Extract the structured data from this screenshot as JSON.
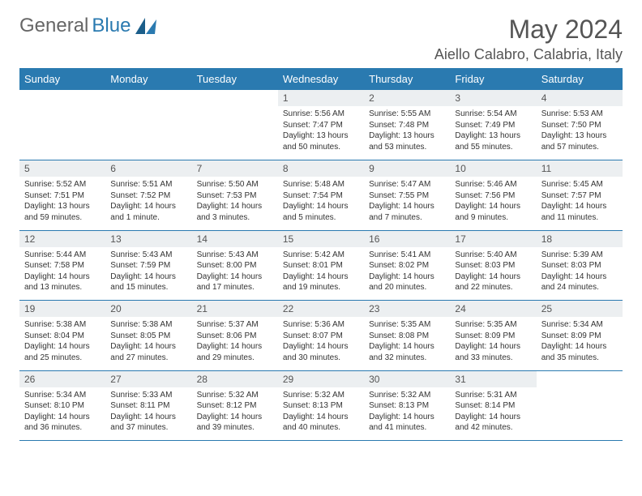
{
  "logo": {
    "general": "General",
    "blue": "Blue"
  },
  "title": "May 2024",
  "location": "Aiello Calabro, Calabria, Italy",
  "colors": {
    "header_bg": "#2a7ab0",
    "header_text": "#ffffff",
    "daynum_bg": "#eceff1",
    "text": "#333333",
    "page_bg": "#ffffff",
    "rule": "#2a7ab0"
  },
  "weekdays": [
    "Sunday",
    "Monday",
    "Tuesday",
    "Wednesday",
    "Thursday",
    "Friday",
    "Saturday"
  ],
  "weeks": [
    [
      {
        "day": "",
        "sunrise": "",
        "sunset": "",
        "daylight1": "",
        "daylight2": ""
      },
      {
        "day": "",
        "sunrise": "",
        "sunset": "",
        "daylight1": "",
        "daylight2": ""
      },
      {
        "day": "",
        "sunrise": "",
        "sunset": "",
        "daylight1": "",
        "daylight2": ""
      },
      {
        "day": "1",
        "sunrise": "Sunrise: 5:56 AM",
        "sunset": "Sunset: 7:47 PM",
        "daylight1": "Daylight: 13 hours",
        "daylight2": "and 50 minutes."
      },
      {
        "day": "2",
        "sunrise": "Sunrise: 5:55 AM",
        "sunset": "Sunset: 7:48 PM",
        "daylight1": "Daylight: 13 hours",
        "daylight2": "and 53 minutes."
      },
      {
        "day": "3",
        "sunrise": "Sunrise: 5:54 AM",
        "sunset": "Sunset: 7:49 PM",
        "daylight1": "Daylight: 13 hours",
        "daylight2": "and 55 minutes."
      },
      {
        "day": "4",
        "sunrise": "Sunrise: 5:53 AM",
        "sunset": "Sunset: 7:50 PM",
        "daylight1": "Daylight: 13 hours",
        "daylight2": "and 57 minutes."
      }
    ],
    [
      {
        "day": "5",
        "sunrise": "Sunrise: 5:52 AM",
        "sunset": "Sunset: 7:51 PM",
        "daylight1": "Daylight: 13 hours",
        "daylight2": "and 59 minutes."
      },
      {
        "day": "6",
        "sunrise": "Sunrise: 5:51 AM",
        "sunset": "Sunset: 7:52 PM",
        "daylight1": "Daylight: 14 hours",
        "daylight2": "and 1 minute."
      },
      {
        "day": "7",
        "sunrise": "Sunrise: 5:50 AM",
        "sunset": "Sunset: 7:53 PM",
        "daylight1": "Daylight: 14 hours",
        "daylight2": "and 3 minutes."
      },
      {
        "day": "8",
        "sunrise": "Sunrise: 5:48 AM",
        "sunset": "Sunset: 7:54 PM",
        "daylight1": "Daylight: 14 hours",
        "daylight2": "and 5 minutes."
      },
      {
        "day": "9",
        "sunrise": "Sunrise: 5:47 AM",
        "sunset": "Sunset: 7:55 PM",
        "daylight1": "Daylight: 14 hours",
        "daylight2": "and 7 minutes."
      },
      {
        "day": "10",
        "sunrise": "Sunrise: 5:46 AM",
        "sunset": "Sunset: 7:56 PM",
        "daylight1": "Daylight: 14 hours",
        "daylight2": "and 9 minutes."
      },
      {
        "day": "11",
        "sunrise": "Sunrise: 5:45 AM",
        "sunset": "Sunset: 7:57 PM",
        "daylight1": "Daylight: 14 hours",
        "daylight2": "and 11 minutes."
      }
    ],
    [
      {
        "day": "12",
        "sunrise": "Sunrise: 5:44 AM",
        "sunset": "Sunset: 7:58 PM",
        "daylight1": "Daylight: 14 hours",
        "daylight2": "and 13 minutes."
      },
      {
        "day": "13",
        "sunrise": "Sunrise: 5:43 AM",
        "sunset": "Sunset: 7:59 PM",
        "daylight1": "Daylight: 14 hours",
        "daylight2": "and 15 minutes."
      },
      {
        "day": "14",
        "sunrise": "Sunrise: 5:43 AM",
        "sunset": "Sunset: 8:00 PM",
        "daylight1": "Daylight: 14 hours",
        "daylight2": "and 17 minutes."
      },
      {
        "day": "15",
        "sunrise": "Sunrise: 5:42 AM",
        "sunset": "Sunset: 8:01 PM",
        "daylight1": "Daylight: 14 hours",
        "daylight2": "and 19 minutes."
      },
      {
        "day": "16",
        "sunrise": "Sunrise: 5:41 AM",
        "sunset": "Sunset: 8:02 PM",
        "daylight1": "Daylight: 14 hours",
        "daylight2": "and 20 minutes."
      },
      {
        "day": "17",
        "sunrise": "Sunrise: 5:40 AM",
        "sunset": "Sunset: 8:03 PM",
        "daylight1": "Daylight: 14 hours",
        "daylight2": "and 22 minutes."
      },
      {
        "day": "18",
        "sunrise": "Sunrise: 5:39 AM",
        "sunset": "Sunset: 8:03 PM",
        "daylight1": "Daylight: 14 hours",
        "daylight2": "and 24 minutes."
      }
    ],
    [
      {
        "day": "19",
        "sunrise": "Sunrise: 5:38 AM",
        "sunset": "Sunset: 8:04 PM",
        "daylight1": "Daylight: 14 hours",
        "daylight2": "and 25 minutes."
      },
      {
        "day": "20",
        "sunrise": "Sunrise: 5:38 AM",
        "sunset": "Sunset: 8:05 PM",
        "daylight1": "Daylight: 14 hours",
        "daylight2": "and 27 minutes."
      },
      {
        "day": "21",
        "sunrise": "Sunrise: 5:37 AM",
        "sunset": "Sunset: 8:06 PM",
        "daylight1": "Daylight: 14 hours",
        "daylight2": "and 29 minutes."
      },
      {
        "day": "22",
        "sunrise": "Sunrise: 5:36 AM",
        "sunset": "Sunset: 8:07 PM",
        "daylight1": "Daylight: 14 hours",
        "daylight2": "and 30 minutes."
      },
      {
        "day": "23",
        "sunrise": "Sunrise: 5:35 AM",
        "sunset": "Sunset: 8:08 PM",
        "daylight1": "Daylight: 14 hours",
        "daylight2": "and 32 minutes."
      },
      {
        "day": "24",
        "sunrise": "Sunrise: 5:35 AM",
        "sunset": "Sunset: 8:09 PM",
        "daylight1": "Daylight: 14 hours",
        "daylight2": "and 33 minutes."
      },
      {
        "day": "25",
        "sunrise": "Sunrise: 5:34 AM",
        "sunset": "Sunset: 8:09 PM",
        "daylight1": "Daylight: 14 hours",
        "daylight2": "and 35 minutes."
      }
    ],
    [
      {
        "day": "26",
        "sunrise": "Sunrise: 5:34 AM",
        "sunset": "Sunset: 8:10 PM",
        "daylight1": "Daylight: 14 hours",
        "daylight2": "and 36 minutes."
      },
      {
        "day": "27",
        "sunrise": "Sunrise: 5:33 AM",
        "sunset": "Sunset: 8:11 PM",
        "daylight1": "Daylight: 14 hours",
        "daylight2": "and 37 minutes."
      },
      {
        "day": "28",
        "sunrise": "Sunrise: 5:32 AM",
        "sunset": "Sunset: 8:12 PM",
        "daylight1": "Daylight: 14 hours",
        "daylight2": "and 39 minutes."
      },
      {
        "day": "29",
        "sunrise": "Sunrise: 5:32 AM",
        "sunset": "Sunset: 8:13 PM",
        "daylight1": "Daylight: 14 hours",
        "daylight2": "and 40 minutes."
      },
      {
        "day": "30",
        "sunrise": "Sunrise: 5:32 AM",
        "sunset": "Sunset: 8:13 PM",
        "daylight1": "Daylight: 14 hours",
        "daylight2": "and 41 minutes."
      },
      {
        "day": "31",
        "sunrise": "Sunrise: 5:31 AM",
        "sunset": "Sunset: 8:14 PM",
        "daylight1": "Daylight: 14 hours",
        "daylight2": "and 42 minutes."
      },
      {
        "day": "",
        "sunrise": "",
        "sunset": "",
        "daylight1": "",
        "daylight2": ""
      }
    ]
  ]
}
